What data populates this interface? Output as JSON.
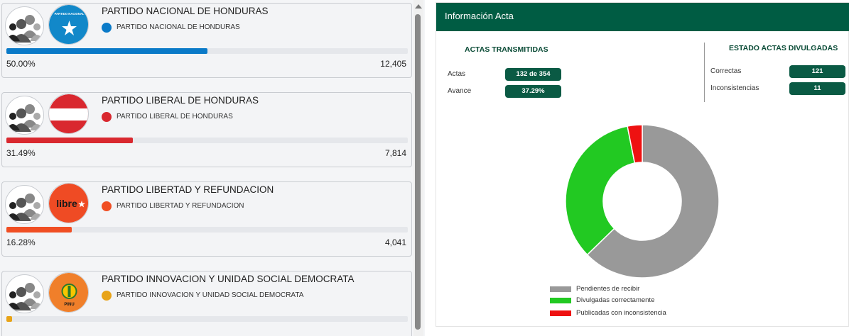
{
  "parties": [
    {
      "name": "PARTIDO NACIONAL DE HONDURAS",
      "sub": "PARTIDO NACIONAL DE HONDURAS",
      "color": "#0a7ac8",
      "percent": "50.00%",
      "votes": "12,405",
      "fraction": 0.5,
      "logo_text": "PARTIDO NACIONAL",
      "logo": "pnh-star-logo"
    },
    {
      "name": "PARTIDO LIBERAL DE HONDURAS",
      "sub": "PARTIDO LIBERAL DE HONDURAS",
      "color": "#d9282f",
      "percent": "31.49%",
      "votes": "7,814",
      "fraction": 0.3149,
      "logo_text": "",
      "logo": "plh-flag-logo"
    },
    {
      "name": "PARTIDO LIBERTAD Y REFUNDACION",
      "sub": "PARTIDO LIBERTAD Y REFUNDACION",
      "color": "#f04e23",
      "percent": "16.28%",
      "votes": "4,041",
      "fraction": 0.1628,
      "logo_text": "libre",
      "logo": "libre-logo"
    },
    {
      "name": "PARTIDO INNOVACION Y UNIDAD SOCIAL DEMOCRATA",
      "sub": "PARTIDO INNOVACION Y UNIDAD SOCIAL DEMOCRATA",
      "color": "#e8a317",
      "percent": "",
      "votes": "",
      "fraction": 0.015,
      "logo_text": "PINU",
      "logo": "pinu-logo"
    }
  ],
  "acta": {
    "title": "Información Acta",
    "transmitidas": {
      "title": "ACTAS TRANSMITIDAS",
      "actas_label": "Actas",
      "actas_value": "132 de 354",
      "avance_label": "Avance",
      "avance_value": "37.29%"
    },
    "estado": {
      "title": "ESTADO ACTAS DIVULGADAS",
      "correctas_label": "Correctas",
      "correctas_value": "121",
      "inconsistencias_label": "Inconsistencias",
      "inconsistencias_value": "11"
    }
  },
  "chart_data": {
    "type": "pie",
    "donut": true,
    "categories": [
      "Pendientes de recibir",
      "Divulgadas correctamente",
      "Publicadas con inconsistencia"
    ],
    "values": [
      222,
      121,
      11
    ],
    "colors": [
      "#999999",
      "#22c922",
      "#ee1111"
    ],
    "legend": "bottom"
  }
}
